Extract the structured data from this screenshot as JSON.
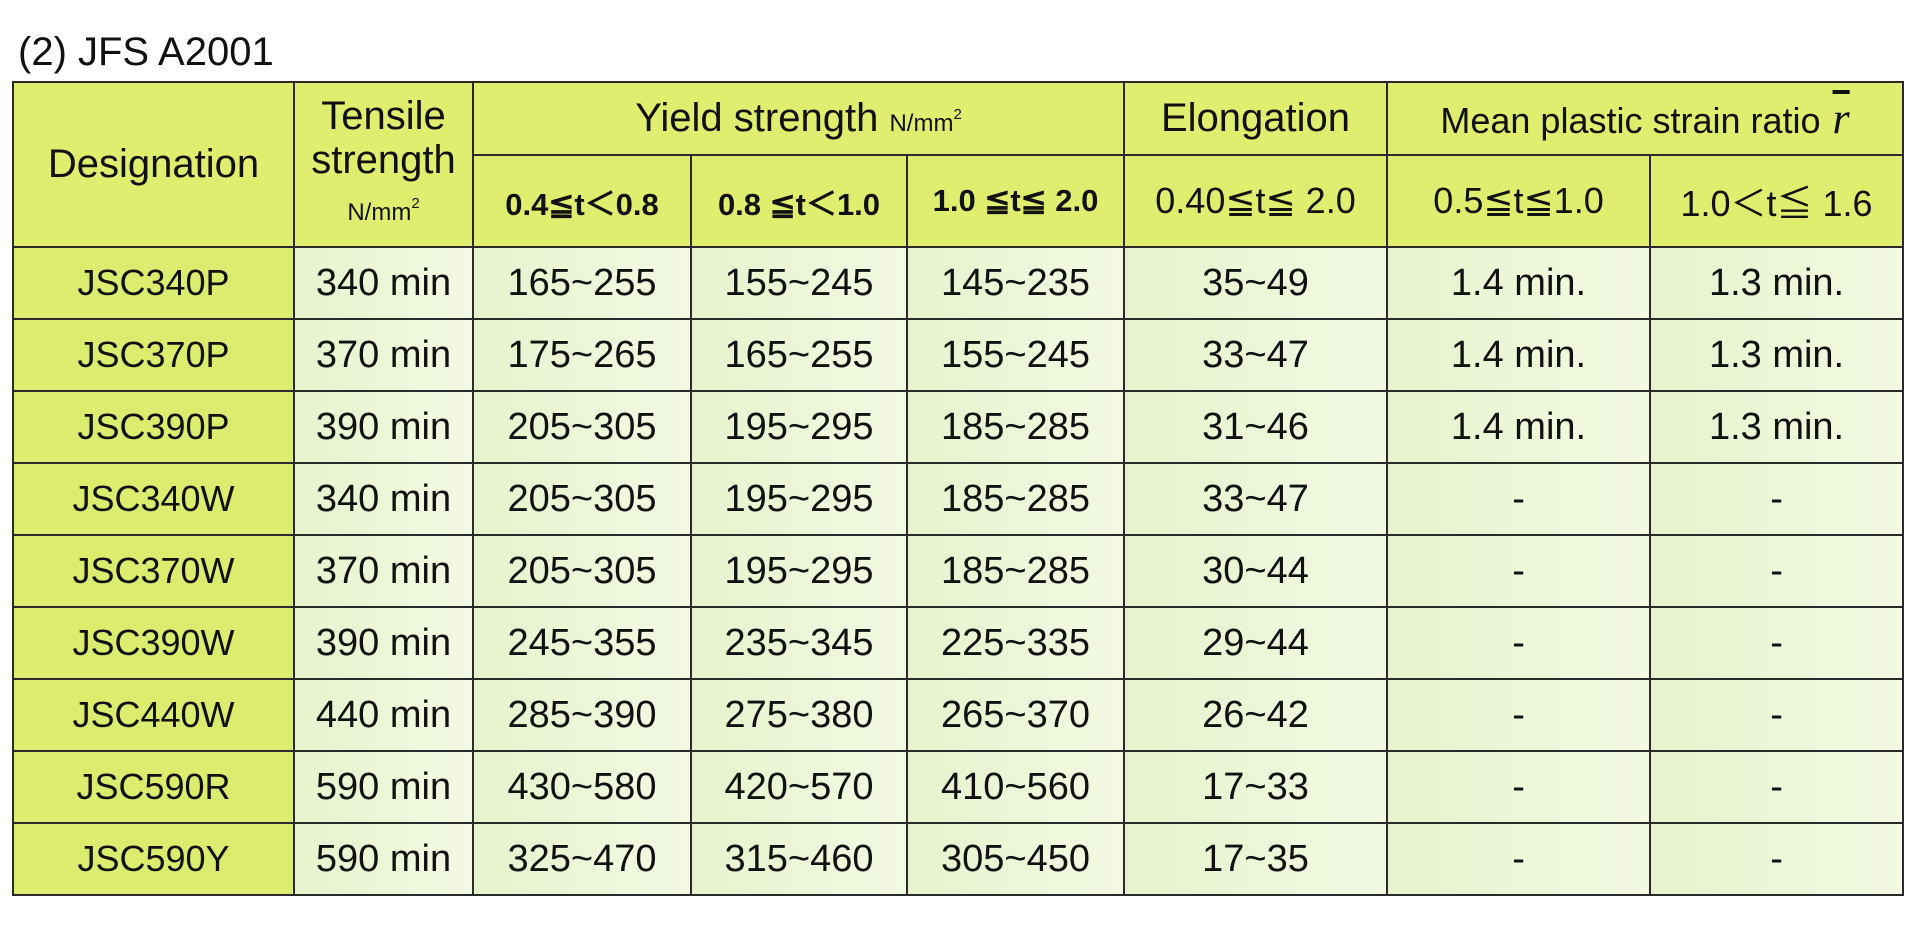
{
  "title": "(2) JFS A2001",
  "table": {
    "header": {
      "designation": "Designation",
      "tensile": [
        "Tensile",
        "strength"
      ],
      "tensile_unit": "N/mm",
      "tensile_unit_exp": "2",
      "yield": "Yield strength",
      "yield_unit": "N/mm",
      "yield_unit_exp": "2",
      "elongation": "Elongation",
      "r_value": "Mean plastic strain ratio",
      "r_symbol": "r",
      "subheaders": [
        "0.4≦t＜0.8",
        "0.8 ≦t＜1.0",
        "1.0 ≦t≦ 2.0",
        "0.40≦t≦ 2.0",
        "0.5≦t≦1.0",
        "1.0＜t≦ 1.6"
      ]
    },
    "rows": [
      [
        "JSC340P",
        "340 min",
        "165~255",
        "155~245",
        "145~235",
        "35~49",
        "1.4 min.",
        "1.3 min."
      ],
      [
        "JSC370P",
        "370 min",
        "175~265",
        "165~255",
        "155~245",
        "33~47",
        "1.4 min.",
        "1.3 min."
      ],
      [
        "JSC390P",
        "390 min",
        "205~305",
        "195~295",
        "185~285",
        "31~46",
        "1.4 min.",
        "1.3 min."
      ],
      [
        "JSC340W",
        "340 min",
        "205~305",
        "195~295",
        "185~285",
        "33~47",
        "-",
        "-"
      ],
      [
        "JSC370W",
        "370 min",
        "205~305",
        "195~295",
        "185~285",
        "30~44",
        "-",
        "-"
      ],
      [
        "JSC390W",
        "390 min",
        "245~355",
        "235~345",
        "225~335",
        "29~44",
        "-",
        "-"
      ],
      [
        "JSC440W",
        "440 min",
        "285~390",
        "275~380",
        "265~370",
        "26~42",
        "-",
        "-"
      ],
      [
        "JSC590R",
        "590 min",
        "430~580",
        "420~570",
        "410~560",
        "17~33",
        "-",
        "-"
      ],
      [
        "JSC590Y",
        "590 min",
        "325~470",
        "315~460",
        "305~450",
        "17~35",
        "-",
        "-"
      ]
    ]
  }
}
